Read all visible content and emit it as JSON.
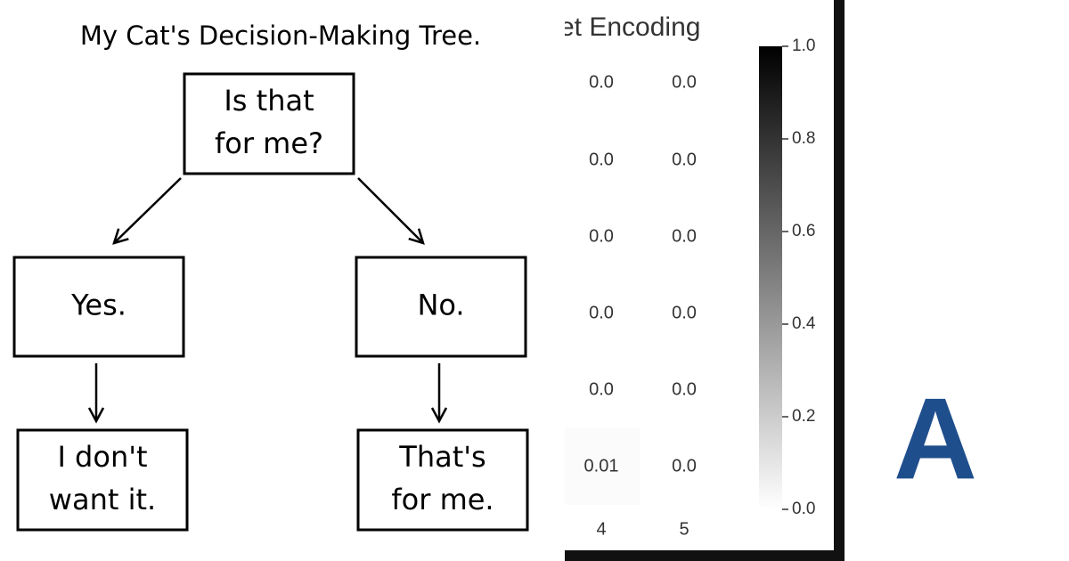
{
  "tree": {
    "title": "My Cat's Decision-Making Tree.",
    "nodes": [
      {
        "lines": [
          "Is that",
          "for me?"
        ]
      },
      {
        "lines": [
          "Yes."
        ]
      },
      {
        "lines": [
          "No."
        ]
      },
      {
        "lines": [
          "I don't",
          "want it."
        ]
      },
      {
        "lines": [
          "That's",
          "for me."
        ]
      }
    ]
  },
  "heatmap": {
    "title": "et Encoding",
    "rows": [
      [
        "0.0",
        "0.0"
      ],
      [
        "0.0",
        "0.0"
      ],
      [
        "0.0",
        "0.0"
      ],
      [
        "0.0",
        "0.0"
      ],
      [
        "0.0",
        "0.0"
      ],
      [
        "0.01",
        "0.0"
      ]
    ],
    "columns": [
      "4",
      "5"
    ],
    "colorbar_ticks": [
      "1.0",
      "0.8",
      "0.6",
      "0.4",
      "0.2",
      "0.0"
    ]
  },
  "logo": {
    "letter": "A"
  }
}
